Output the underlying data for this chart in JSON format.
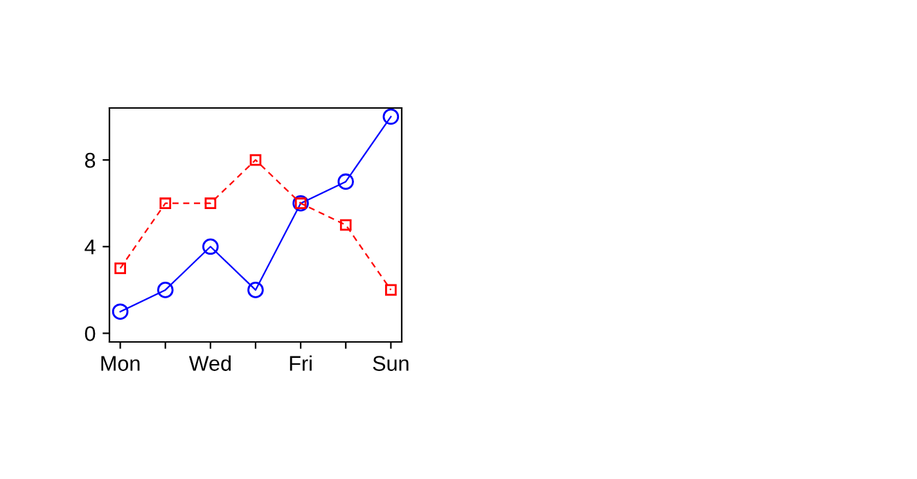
{
  "chart_data": {
    "type": "line",
    "categories": [
      "Mon",
      null,
      "Wed",
      null,
      "Fri",
      null,
      "Sun"
    ],
    "series": [
      {
        "color": "#0000ff",
        "values": [
          1,
          2,
          4,
          2,
          6,
          7,
          10
        ],
        "marker": "circle",
        "line_style": "solid"
      },
      {
        "color": "#ff0000",
        "values": [
          3,
          6,
          6,
          8,
          6,
          5,
          2
        ],
        "marker": "square",
        "line_style": "dashed"
      }
    ],
    "ylim": [
      -0.4,
      10.4
    ],
    "yticks": [
      0,
      4,
      8
    ],
    "grid": false,
    "legend": false
  }
}
